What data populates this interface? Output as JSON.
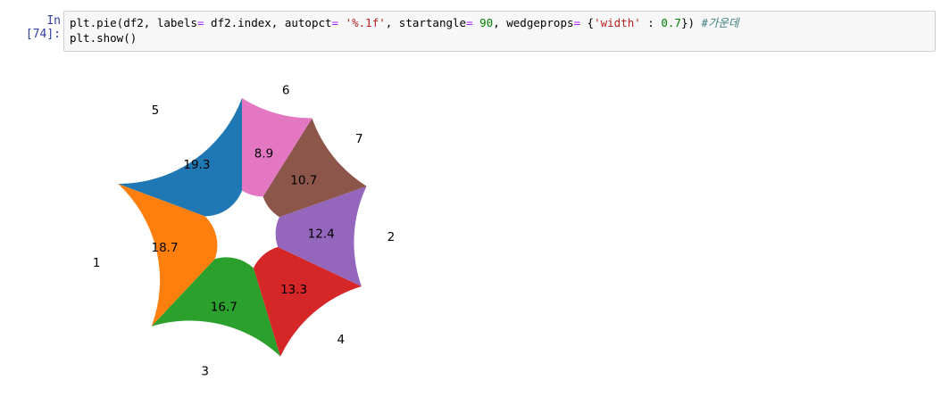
{
  "cell": {
    "prompt": "In [74]:",
    "code_line1": [
      {
        "t": "plt.pie(df2, labels",
        "c": ""
      },
      {
        "t": "=",
        "c": "op"
      },
      {
        "t": " df2.index, autopct",
        "c": ""
      },
      {
        "t": "=",
        "c": "op"
      },
      {
        "t": " ",
        "c": ""
      },
      {
        "t": "'%.1f'",
        "c": "str"
      },
      {
        "t": ", startangle",
        "c": ""
      },
      {
        "t": "=",
        "c": "op"
      },
      {
        "t": " ",
        "c": ""
      },
      {
        "t": "90",
        "c": "num"
      },
      {
        "t": ", wedgeprops",
        "c": ""
      },
      {
        "t": "=",
        "c": "op"
      },
      {
        "t": " {",
        "c": ""
      },
      {
        "t": "'width'",
        "c": "str"
      },
      {
        "t": " : ",
        "c": ""
      },
      {
        "t": "0.7",
        "c": "num"
      },
      {
        "t": "}) ",
        "c": ""
      },
      {
        "t": "#가운데",
        "c": "cmt"
      }
    ],
    "code_line2": "plt.show()"
  },
  "chart_data": {
    "type": "pie",
    "start_angle": 90,
    "wedge_width": 0.7,
    "slices": [
      {
        "label": "5",
        "value": 19.3,
        "pct_label": "19.3",
        "color": "#1f77b4"
      },
      {
        "label": "1",
        "value": 18.7,
        "pct_label": "18.7",
        "color": "#ff7f0e"
      },
      {
        "label": "3",
        "value": 16.7,
        "pct_label": "16.7",
        "color": "#2ca02c"
      },
      {
        "label": "4",
        "value": 13.3,
        "pct_label": "13.3",
        "color": "#d62728"
      },
      {
        "label": "2",
        "value": 12.4,
        "pct_label": "12.4",
        "color": "#9467bd"
      },
      {
        "label": "7",
        "value": 10.7,
        "pct_label": "10.7",
        "color": "#8c564b"
      },
      {
        "label": "6",
        "value": 8.9,
        "pct_label": "8.9",
        "color": "#e377c2"
      }
    ]
  }
}
